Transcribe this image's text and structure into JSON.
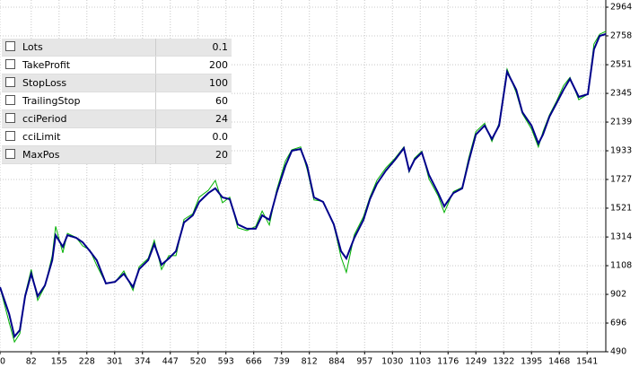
{
  "chart_data": {
    "type": "line",
    "x": [
      0,
      24,
      38,
      52,
      66,
      82,
      99,
      118,
      137,
      146,
      165,
      177,
      200,
      217,
      236,
      254,
      278,
      302,
      325,
      349,
      365,
      389,
      405,
      424,
      443,
      462,
      483,
      506,
      523,
      547,
      565,
      584,
      603,
      624,
      648,
      671,
      688,
      707,
      726,
      749,
      766,
      789,
      806,
      824,
      848,
      876,
      895,
      909,
      930,
      954,
      971,
      989,
      1013,
      1037,
      1060,
      1074,
      1088,
      1107,
      1126,
      1150,
      1166,
      1190,
      1213,
      1230,
      1249,
      1272,
      1291,
      1310,
      1331,
      1355,
      1371,
      1395,
      1413,
      1425,
      1442,
      1461,
      1479,
      1496,
      1519,
      1543,
      1559,
      1574,
      1590
    ],
    "series": [
      {
        "color": "#00008b",
        "values": [
          954,
          761,
          599,
          645,
          889,
          1050,
          889,
          967,
          1147,
          1327,
          1244,
          1327,
          1308,
          1276,
          1212,
          1147,
          980,
          992,
          1050,
          954,
          1083,
          1147,
          1263,
          1115,
          1160,
          1212,
          1418,
          1469,
          1566,
          1630,
          1663,
          1598,
          1585,
          1405,
          1373,
          1373,
          1469,
          1437,
          1630,
          1824,
          1933,
          1946,
          1824,
          1598,
          1566,
          1405,
          1212,
          1160,
          1308,
          1437,
          1585,
          1695,
          1791,
          1869,
          1952,
          1791,
          1869,
          1920,
          1759,
          1630,
          1534,
          1630,
          1663,
          1856,
          2049,
          2114,
          2017,
          2114,
          2500,
          2371,
          2210,
          2114,
          1985,
          2049,
          2178,
          2275,
          2371,
          2449,
          2320,
          2339,
          2661,
          2758,
          2771
        ]
      },
      {
        "color": "#00b000",
        "values": [
          954,
          700,
          560,
          620,
          900,
          1080,
          860,
          960,
          1180,
          1390,
          1200,
          1340,
          1310,
          1250,
          1220,
          1110,
          980,
          990,
          1070,
          930,
          1100,
          1160,
          1290,
          1080,
          1180,
          1180,
          1440,
          1480,
          1600,
          1650,
          1720,
          1560,
          1600,
          1380,
          1360,
          1390,
          1500,
          1400,
          1650,
          1860,
          1940,
          1960,
          1800,
          1580,
          1570,
          1400,
          1170,
          1060,
          1330,
          1460,
          1600,
          1720,
          1810,
          1880,
          1960,
          1780,
          1880,
          1930,
          1730,
          1610,
          1490,
          1640,
          1670,
          1880,
          2070,
          2130,
          2000,
          2130,
          2520,
          2350,
          2200,
          2090,
          1960,
          2070,
          2190,
          2290,
          2400,
          2460,
          2300,
          2340,
          2700,
          2770,
          2790
        ]
      }
    ],
    "xlim": [
      0,
      1590
    ],
    "xticks": [
      0,
      82,
      155,
      228,
      301,
      374,
      447,
      520,
      593,
      666,
      739,
      812,
      884,
      957,
      1030,
      1103,
      1176,
      1249,
      1322,
      1395,
      1468,
      1541
    ],
    "ylim": [
      490,
      2964
    ],
    "yticks": [
      490,
      696,
      902,
      1108,
      1314,
      1521,
      1727,
      1933,
      2139,
      2345,
      2551,
      2758,
      2964
    ],
    "grid": true
  },
  "table": {
    "rows": [
      [
        "Lots",
        "0.1"
      ],
      [
        "TakeProfit",
        "200"
      ],
      [
        "StopLoss",
        "100"
      ],
      [
        "TrailingStop",
        "60"
      ],
      [
        "cciPeriod",
        "24"
      ],
      [
        "cciLimit",
        "0.0"
      ],
      [
        "MaxPos",
        "20"
      ]
    ]
  }
}
